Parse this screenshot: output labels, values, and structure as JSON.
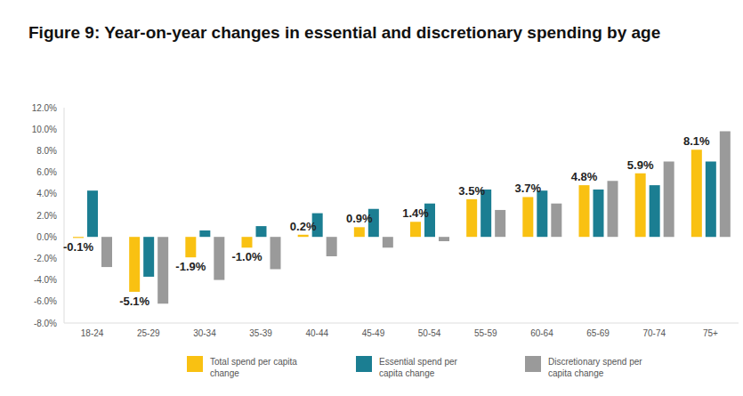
{
  "chart_data": {
    "type": "bar",
    "title": "Figure 9: Year-on-year changes in essential and discretionary spending by age",
    "categories": [
      "18-24",
      "25-29",
      "30-34",
      "35-39",
      "40-44",
      "45-49",
      "50-54",
      "55-59",
      "60-64",
      "65-69",
      "70-74",
      "75+"
    ],
    "series": [
      {
        "name": "Total spend per capita change",
        "color": "#F9C112",
        "values": [
          -0.1,
          -5.1,
          -1.9,
          -1.0,
          0.2,
          0.9,
          1.4,
          3.5,
          3.7,
          4.8,
          5.9,
          8.1
        ],
        "data_labels": true,
        "value_labels": [
          "-0.1%",
          "-5.1%",
          "-1.9%",
          "-1.0%",
          "0.2%",
          "0.9%",
          "1.4%",
          "3.5%",
          "3.7%",
          "4.8%",
          "5.9%",
          "8.1%"
        ]
      },
      {
        "name": "Essential spend per capita change",
        "color": "#1B7E92",
        "values": [
          4.3,
          -3.7,
          0.6,
          1.0,
          2.2,
          2.6,
          3.1,
          4.4,
          4.3,
          4.4,
          4.8,
          7.0
        ]
      },
      {
        "name": "Discretionary spend per capita change",
        "color": "#9A9A9A",
        "values": [
          -2.8,
          -6.2,
          -4.0,
          -3.0,
          -1.8,
          -1.0,
          -0.4,
          2.5,
          3.1,
          5.2,
          7.0,
          9.8
        ]
      }
    ],
    "ylim": [
      -8,
      12
    ],
    "yticks": [
      {
        "value": -8,
        "label": "-8.0%"
      },
      {
        "value": -6,
        "label": "-6.0%"
      },
      {
        "value": -4,
        "label": "-4.0%"
      },
      {
        "value": -2,
        "label": "-2.0%"
      },
      {
        "value": 0,
        "label": "0.0%"
      },
      {
        "value": 2,
        "label": "2.0%"
      },
      {
        "value": 4,
        "label": "4.0%"
      },
      {
        "value": 6,
        "label": "6.0%"
      },
      {
        "value": 8,
        "label": "8.0%"
      },
      {
        "value": 10,
        "label": "10.0%"
      },
      {
        "value": 12,
        "label": "12.0%"
      }
    ],
    "grid": false,
    "legend": "bottom"
  }
}
